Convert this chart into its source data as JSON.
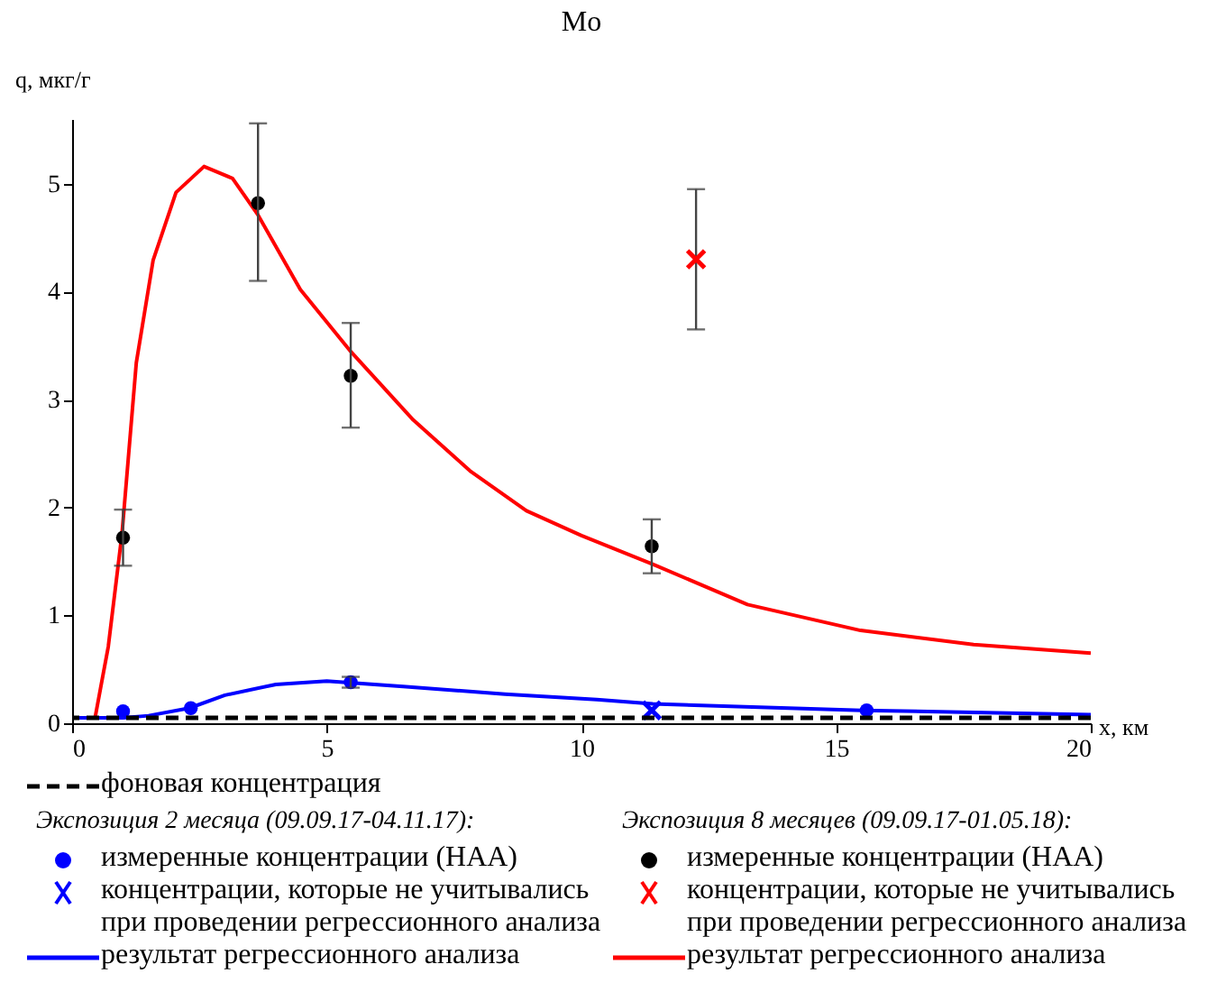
{
  "chart_data": {
    "type": "scatter",
    "title": "Mo",
    "xlabel": "x, км",
    "ylabel": "q, мкг/г",
    "xlim": [
      0,
      20
    ],
    "ylim": [
      0,
      5.6
    ],
    "xticks": [
      0,
      5,
      10,
      15,
      20
    ],
    "yticks": [
      0,
      1,
      2,
      3,
      4,
      5
    ],
    "legend": "bottom",
    "ref_lines": [
      {
        "axis": "y",
        "value": 0.05,
        "label": "фоновая концентрация",
        "color": "#000000",
        "line_style": "dashed"
      }
    ],
    "annotations": [
      "Экспозиция 2 месяца (09.09.17-04.11.17):",
      "Экспозиция 8 месяцев (09.09.17-01.05.18):"
    ],
    "series": [
      {
        "name": "измеренные концентрации (НАА)",
        "color": "#0000ff",
        "marker": "circle",
        "x": [
          1.0,
          2.33,
          5.47,
          15.6
        ],
        "values": [
          0.11,
          0.14,
          0.38,
          0.12
        ],
        "errors": [
          null,
          null,
          [
            0.33,
            0.43
          ],
          null
        ]
      },
      {
        "name": "концентрации, которые не учитывались при проведении регрессионного анализа",
        "color": "#0000ff",
        "marker": "cross",
        "x": [
          11.38
        ],
        "values": [
          0.12
        ]
      },
      {
        "name": "результат регрессионного анализа",
        "type": "line",
        "color": "#0000ff",
        "line_style": "solid",
        "x": [
          0,
          1,
          1.5,
          2.3,
          3,
          4,
          5,
          6.5,
          8.5,
          10.3,
          11.4,
          15.5,
          20
        ],
        "values": [
          0.05,
          0.05,
          0.07,
          0.14,
          0.26,
          0.36,
          0.39,
          0.34,
          0.27,
          0.22,
          0.18,
          0.12,
          0.08
        ]
      },
      {
        "name": "измеренные концентрации (НАА)",
        "color": "#000000",
        "marker": "circle",
        "x": [
          1.0,
          3.65,
          5.47,
          11.38
        ],
        "values": [
          1.72,
          4.82,
          3.22,
          1.64
        ],
        "errors": [
          [
            1.46,
            1.98
          ],
          [
            4.1,
            5.56
          ],
          [
            2.74,
            3.71
          ],
          [
            1.39,
            1.89
          ]
        ]
      },
      {
        "name": "концентрации, которые не учитывались при проведении регрессионного анализа",
        "color": "#ff0000",
        "marker": "cross",
        "x": [
          12.25
        ],
        "values": [
          4.3
        ],
        "errors": [
          [
            3.65,
            4.95
          ]
        ]
      },
      {
        "name": "результат регрессионного анализа",
        "type": "line",
        "color": "#ff0000",
        "line_style": "solid",
        "x": [
          0.45,
          0.71,
          0.98,
          1.26,
          1.59,
          2.04,
          2.59,
          3.15,
          3.65,
          4.48,
          5.48,
          6.7,
          7.81,
          8.92,
          10.0,
          11.42,
          13.26,
          15.48,
          17.7,
          20
        ],
        "values": [
          0.05,
          0.71,
          1.76,
          3.34,
          4.29,
          4.92,
          5.16,
          5.05,
          4.71,
          4.02,
          3.44,
          2.81,
          2.34,
          1.97,
          1.74,
          1.47,
          1.1,
          0.86,
          0.73,
          0.65
        ]
      }
    ]
  }
}
